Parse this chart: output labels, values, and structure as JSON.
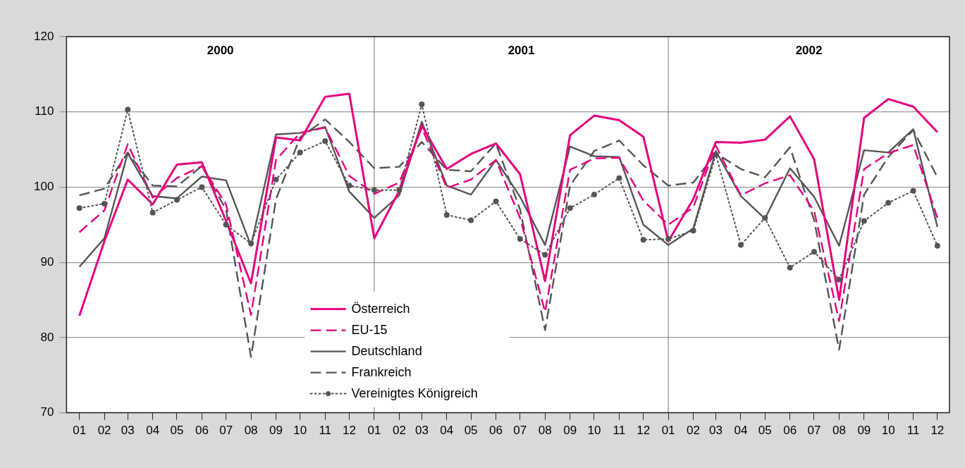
{
  "chart_data": {
    "type": "line",
    "x": [
      "2000-01",
      "2000-02",
      "2000-03",
      "2000-04",
      "2000-05",
      "2000-06",
      "2000-07",
      "2000-08",
      "2000-09",
      "2000-10",
      "2000-11",
      "2000-12",
      "2001-01",
      "2001-02",
      "2001-03",
      "2001-04",
      "2001-05",
      "2001-06",
      "2001-07",
      "2001-08",
      "2001-09",
      "2001-10",
      "2001-11",
      "2001-12",
      "2002-01",
      "2002-02",
      "2002-03",
      "2002-04",
      "2002-05",
      "2002-06",
      "2002-07",
      "2002-08",
      "2002-09",
      "2002-10",
      "2002-11",
      "2002-12"
    ],
    "xlim": [
      "1999-12-16",
      "2002-12-16"
    ],
    "xticks": [
      {
        "value": "2000-01",
        "label": "01"
      },
      {
        "value": "2000-02",
        "label": "02"
      },
      {
        "value": "2000-03",
        "label": "03"
      },
      {
        "value": "2000-04",
        "label": "04"
      },
      {
        "value": "2000-05",
        "label": "05"
      },
      {
        "value": "2000-06",
        "label": "06"
      },
      {
        "value": "2000-07",
        "label": "07"
      },
      {
        "value": "2000-08",
        "label": "08"
      },
      {
        "value": "2000-09",
        "label": "09"
      },
      {
        "value": "2000-10",
        "label": "10"
      },
      {
        "value": "2000-11",
        "label": "11"
      },
      {
        "value": "2000-12",
        "label": "12"
      },
      {
        "value": "2001-01",
        "label": "01"
      },
      {
        "value": "2001-02",
        "label": "02"
      },
      {
        "value": "2001-03",
        "label": "03"
      },
      {
        "value": "2001-04",
        "label": "04"
      },
      {
        "value": "2001-05",
        "label": "05"
      },
      {
        "value": "2001-06",
        "label": "06"
      },
      {
        "value": "2001-07",
        "label": "07"
      },
      {
        "value": "2001-08",
        "label": "08"
      },
      {
        "value": "2001-09",
        "label": "09"
      },
      {
        "value": "2001-10",
        "label": "10"
      },
      {
        "value": "2001-11",
        "label": "11"
      },
      {
        "value": "2001-12",
        "label": "12"
      },
      {
        "value": "2002-01",
        "label": "01"
      },
      {
        "value": "2002-02",
        "label": "02"
      },
      {
        "value": "2002-03",
        "label": "03"
      },
      {
        "value": "2002-04",
        "label": "04"
      },
      {
        "value": "2002-05",
        "label": "05"
      },
      {
        "value": "2002-06",
        "label": "06"
      },
      {
        "value": "2002-07",
        "label": "07"
      },
      {
        "value": "2002-08",
        "label": "08"
      },
      {
        "value": "2002-09",
        "label": "09"
      },
      {
        "value": "2002-10",
        "label": "10"
      },
      {
        "value": "2002-11",
        "label": "11"
      },
      {
        "value": "2002-12",
        "label": "12"
      }
    ],
    "ylim": [
      70,
      120
    ],
    "yticks": [
      70,
      80,
      90,
      100,
      110,
      120
    ],
    "grid": "y",
    "legend": "bottom",
    "series": [
      {
        "name": "Österreich",
        "color": "#e6007e",
        "line_style": "solid",
        "values": [
          82.9,
          92.8,
          101,
          97.7,
          103,
          103.3,
          95.5,
          87.2,
          106.6,
          106.2,
          112,
          112.4,
          93.2,
          99.5,
          108.2,
          102.4,
          104.4,
          105.8,
          101.7,
          87.5,
          106.9,
          109.5,
          108.9,
          106.7,
          92.8,
          98.4,
          106,
          105.9,
          106.3,
          109.4,
          103.7,
          85,
          109.2,
          111.7,
          110.7,
          107.3
        ]
      },
      {
        "name": "EU-15",
        "color": "#e6007e",
        "line_style": "dashed",
        "values": [
          94,
          96.9,
          105.7,
          98.6,
          101.2,
          102.8,
          97.7,
          83,
          103.6,
          107.2,
          107.9,
          101.5,
          99.1,
          100.6,
          107.9,
          99.9,
          101,
          103.6,
          95.9,
          83.4,
          102.3,
          103.8,
          103.9,
          98.2,
          95,
          97.3,
          105.5,
          98.9,
          100.5,
          101.6,
          96.8,
          82.2,
          102.4,
          104.5,
          105.6,
          95.9
        ]
      },
      {
        "name": "Deutschland",
        "color": "#555555",
        "line_style": "solid",
        "values": [
          89.4,
          93.2,
          104.5,
          98.8,
          98.5,
          101.4,
          100.9,
          92.2,
          107,
          107.2,
          108,
          99.4,
          95.9,
          98.9,
          108.7,
          100.2,
          99,
          103.6,
          98.7,
          92.3,
          105.4,
          104.1,
          104,
          95,
          92.3,
          94.5,
          104.8,
          98.8,
          95.8,
          102.5,
          98.7,
          92.2,
          104.9,
          104.6,
          107.7,
          94.7
        ]
      },
      {
        "name": "Frankreich",
        "color": "#555555",
        "line_style": "dashed",
        "values": [
          98.9,
          99.8,
          104.6,
          100.2,
          100.1,
          102.8,
          97,
          77.4,
          98.4,
          106.6,
          109,
          106,
          102.5,
          102.7,
          106,
          102.3,
          102.1,
          105.8,
          97,
          81,
          100.2,
          104.8,
          106.2,
          102.9,
          100.2,
          100.6,
          104.5,
          102.4,
          101.3,
          105.3,
          95.6,
          78.4,
          99,
          104,
          107.6,
          101.3
        ]
      },
      {
        "name": "Vereinigtes Königreich",
        "color": "#555555",
        "line_style": "dotted",
        "marker": "circle",
        "values": [
          97.2,
          97.8,
          110.3,
          96.6,
          98.3,
          100,
          95,
          92.5,
          101,
          104.6,
          106.1,
          100.2,
          99.6,
          99.6,
          111,
          96.3,
          95.6,
          98.1,
          93.1,
          91,
          97.2,
          99,
          101.2,
          93,
          93.1,
          94.2,
          104.3,
          92.3,
          95.9,
          89.3,
          91.4,
          87.7,
          95.5,
          97.9,
          99.5,
          92.2
        ]
      }
    ],
    "ref_lines": [
      {
        "axis": "x",
        "value": "2001-01"
      },
      {
        "axis": "x",
        "value": "2002-01"
      }
    ],
    "annotations": [
      "2000",
      "2001",
      "2002"
    ]
  }
}
